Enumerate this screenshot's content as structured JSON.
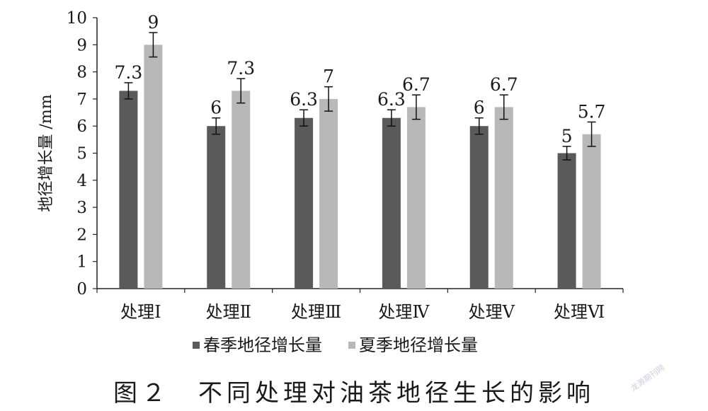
{
  "chart_data": {
    "type": "bar",
    "categories": [
      "处理Ⅰ",
      "处理Ⅱ",
      "处理Ⅲ",
      "处理Ⅳ",
      "处理Ⅴ",
      "处理Ⅵ"
    ],
    "series": [
      {
        "name": "春季地径增长量",
        "color": "#5a5a5a",
        "values": [
          7.3,
          6,
          6.3,
          6.3,
          6,
          5
        ],
        "labels": [
          "7.3",
          "6",
          "6.3",
          "6.3",
          "6",
          "5"
        ],
        "errors": [
          0.3,
          0.3,
          0.3,
          0.3,
          0.3,
          0.25
        ]
      },
      {
        "name": "夏季地径增长量",
        "color": "#b8b8b8",
        "values": [
          9,
          7.3,
          7,
          6.7,
          6.7,
          5.7
        ],
        "labels": [
          "9",
          "7.3",
          "7",
          "6.7",
          "6.7",
          "5.7"
        ],
        "errors": [
          0.45,
          0.45,
          0.45,
          0.45,
          0.45,
          0.45
        ]
      }
    ],
    "ylabel": "地径增长量 /mm",
    "ylim": [
      0,
      10
    ],
    "yticks": [
      0,
      1,
      2,
      3,
      4,
      5,
      6,
      7,
      8,
      9,
      10
    ],
    "grid": false,
    "legend": "bottom"
  },
  "caption": "图２　不同处理对油茶地径生长的影响",
  "watermark": "龙源期刊网"
}
